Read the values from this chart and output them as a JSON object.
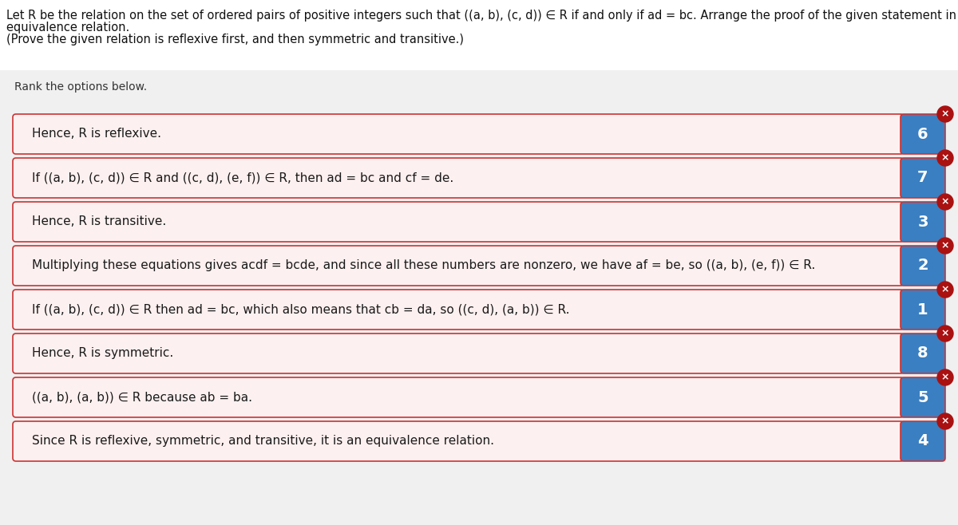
{
  "title_lines": [
    "Let R be the relation on the set of ordered pairs of positive integers such that ((a, b), (c, d)) ∈ R if and only if ad = bc. Arrange the proof of the given statement in correct order to show that R is an",
    "equivalence relation.",
    "(Prove the given relation is reflexive first, and then symmetric and transitive.)"
  ],
  "rank_label": "Rank the options below.",
  "rows": [
    {
      "text": "Hence, R is reflexive.",
      "number": "6"
    },
    {
      "text": "If ((a, b), (c, d)) ∈ R and ((c, d), (e, f)) ∈ R, then ad = bc and cf = de.",
      "number": "7"
    },
    {
      "text": "Hence, R is transitive.",
      "number": "3"
    },
    {
      "text": "Multiplying these equations gives acdf = bcde, and since all these numbers are nonzero, we have af = be, so ((a, b), (e, f)) ∈ R.",
      "number": "2"
    },
    {
      "text": "If ((a, b), (c, d)) ∈ R then ad = bc, which also means that cb = da, so ((c, d), (a, b)) ∈ R.",
      "number": "1"
    },
    {
      "text": "Hence, R is symmetric.",
      "number": "8"
    },
    {
      "text": "((a, b), (a, b)) ∈ R because ab = ba.",
      "number": "5"
    },
    {
      "text": "Since R is reflexive, symmetric, and transitive, it is an equivalence relation.",
      "number": "4"
    }
  ],
  "bg_color": "#ffffff",
  "gray_bg": "#f0f0f0",
  "gray_border": "#e0e0e0",
  "row_bg": "#fdf0f0",
  "row_border": "#cc3333",
  "number_bg": "#3a7fc1",
  "number_color": "#ffffff",
  "x_bg": "#aa1111",
  "x_color": "#ffffff",
  "title_fontsize": 10.5,
  "rank_fontsize": 10,
  "row_fontsize": 11,
  "num_fontsize": 14
}
